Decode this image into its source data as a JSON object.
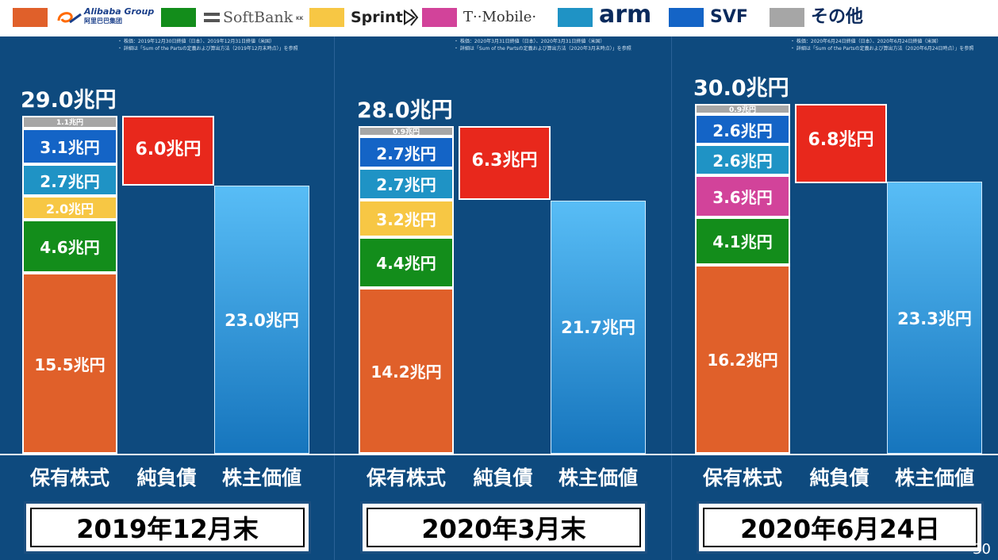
{
  "legend": [
    {
      "key": "alibaba",
      "label": "",
      "color": "#e0602a",
      "icon": "alibaba-logo"
    },
    {
      "key": "softbank",
      "label": "SoftBank",
      "color": "#138d1b",
      "icon": "softbank-logo"
    },
    {
      "key": "sprint",
      "label": "Sprint",
      "color": "#f7c744",
      "icon": "sprint-logo"
    },
    {
      "key": "tmobile",
      "label": "T··Mobile·",
      "color": "#d2439a",
      "icon": "tmobile-logo"
    },
    {
      "key": "arm",
      "label": "arm",
      "color": "#1f93c5",
      "icon": "arm-logo"
    },
    {
      "key": "svf",
      "label": "SVF",
      "color": "#1464c6",
      "icon": "svf-logo"
    },
    {
      "key": "other",
      "label": "その他",
      "color": "#a6a6a6",
      "icon": "other"
    }
  ],
  "alibaba_logo_text": "Alibaba Group",
  "alibaba_sub_text": "阿里巴巴集团",
  "softbank_suffix": "KK",
  "categories": [
    "保有株式",
    "純負債",
    "株主価値"
  ],
  "colors": {
    "netdebt": "#e8281c",
    "shareholder_top": "#58bdf6",
    "shareholder_bottom": "#1675bd"
  },
  "chart_data": {
    "type": "bar",
    "unit": "兆円",
    "ylim": [
      0,
      30.0
    ],
    "panels": [
      {
        "date": "2019年12月末",
        "notes": [
          "・ 株価：2019年12月30日終値（日本）、2019年12月31日終値（米国）",
          "・ 詳細は「Sum of the Partsの定義および算出方法（2019年12月末時点）」を参照"
        ],
        "total": 29.0,
        "total_label": "29.0兆円",
        "holdings": [
          {
            "key": "alibaba",
            "value": 15.5,
            "label": "15.5兆円"
          },
          {
            "key": "softbank",
            "value": 4.6,
            "label": "4.6兆円"
          },
          {
            "key": "sprint",
            "value": 2.0,
            "label": "2.0兆円"
          },
          {
            "key": "arm",
            "value": 2.7,
            "label": "2.7兆円"
          },
          {
            "key": "svf",
            "value": 3.1,
            "label": "3.1兆円"
          },
          {
            "key": "other",
            "value": 1.1,
            "label": "1.1兆円"
          }
        ],
        "net_debt": 6.0,
        "net_debt_label": "6.0兆円",
        "shareholder_value": 23.0,
        "shareholder_label": "23.0兆円"
      },
      {
        "date": "2020年3月末",
        "notes": [
          "・ 株価：2020年3月31日終値（日本）、2020年3月31日終値（米国）",
          "・ 詳細は「Sum of the Partsの定義および算出方法（2020年3月末時点）」を参照"
        ],
        "total": 28.0,
        "total_label": "28.0兆円",
        "holdings": [
          {
            "key": "alibaba",
            "value": 14.2,
            "label": "14.2兆円"
          },
          {
            "key": "softbank",
            "value": 4.4,
            "label": "4.4兆円"
          },
          {
            "key": "sprint",
            "value": 3.2,
            "label": "3.2兆円"
          },
          {
            "key": "arm",
            "value": 2.7,
            "label": "2.7兆円"
          },
          {
            "key": "svf",
            "value": 2.7,
            "label": "2.7兆円"
          },
          {
            "key": "other",
            "value": 0.9,
            "label": "0.9兆円"
          }
        ],
        "net_debt": 6.3,
        "net_debt_label": "6.3兆円",
        "shareholder_value": 21.7,
        "shareholder_label": "21.7兆円"
      },
      {
        "date": "2020年6月24日",
        "notes": [
          "・ 株価：2020年6月24日終値（日本）、2020年6月24日終値（米国）",
          "・ 詳細は「Sum of the Partsの定義および算出方法（2020年6月24日時点）」を参照"
        ],
        "total": 30.0,
        "total_label": "30.0兆円",
        "holdings": [
          {
            "key": "alibaba",
            "value": 16.2,
            "label": "16.2兆円"
          },
          {
            "key": "softbank",
            "value": 4.1,
            "label": "4.1兆円"
          },
          {
            "key": "tmobile",
            "value": 3.6,
            "label": "3.6兆円"
          },
          {
            "key": "arm",
            "value": 2.6,
            "label": "2.6兆円"
          },
          {
            "key": "svf",
            "value": 2.6,
            "label": "2.6兆円"
          },
          {
            "key": "other",
            "value": 0.9,
            "label": "0.9兆円"
          }
        ],
        "net_debt": 6.8,
        "net_debt_label": "6.8兆円",
        "shareholder_value": 23.3,
        "shareholder_label": "23.3兆円"
      }
    ]
  },
  "page_number": "30"
}
